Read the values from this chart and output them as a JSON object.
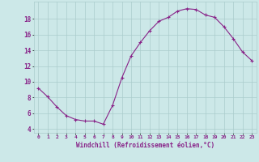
{
  "x": [
    0,
    1,
    2,
    3,
    4,
    5,
    6,
    7,
    8,
    9,
    10,
    11,
    12,
    13,
    14,
    15,
    16,
    17,
    18,
    19,
    20,
    21,
    22,
    23
  ],
  "y": [
    9.2,
    8.1,
    6.8,
    5.7,
    5.2,
    5.0,
    5.0,
    4.6,
    7.0,
    10.5,
    13.3,
    15.0,
    16.5,
    17.7,
    18.2,
    19.0,
    19.3,
    19.2,
    18.5,
    18.2,
    17.0,
    15.5,
    13.8,
    12.7
  ],
  "line_color": "#882288",
  "marker": "+",
  "marker_size": 3,
  "marker_linewidth": 0.8,
  "line_width": 0.8,
  "xlabel": "Windchill (Refroidissement éolien,°C)",
  "xlabel_fontsize": 5.5,
  "bg_color": "#cce8e8",
  "grid_color": "#aacccc",
  "tick_color": "#882288",
  "label_color": "#882288",
  "yticks": [
    4,
    6,
    8,
    10,
    12,
    14,
    16,
    18
  ],
  "xticks": [
    0,
    1,
    2,
    3,
    4,
    5,
    6,
    7,
    8,
    9,
    10,
    11,
    12,
    13,
    14,
    15,
    16,
    17,
    18,
    19,
    20,
    21,
    22,
    23
  ],
  "ylim": [
    3.5,
    20.2
  ],
  "xlim": [
    -0.5,
    23.5
  ],
  "tick_fontsize_x": 4.5,
  "tick_fontsize_y": 5.5
}
